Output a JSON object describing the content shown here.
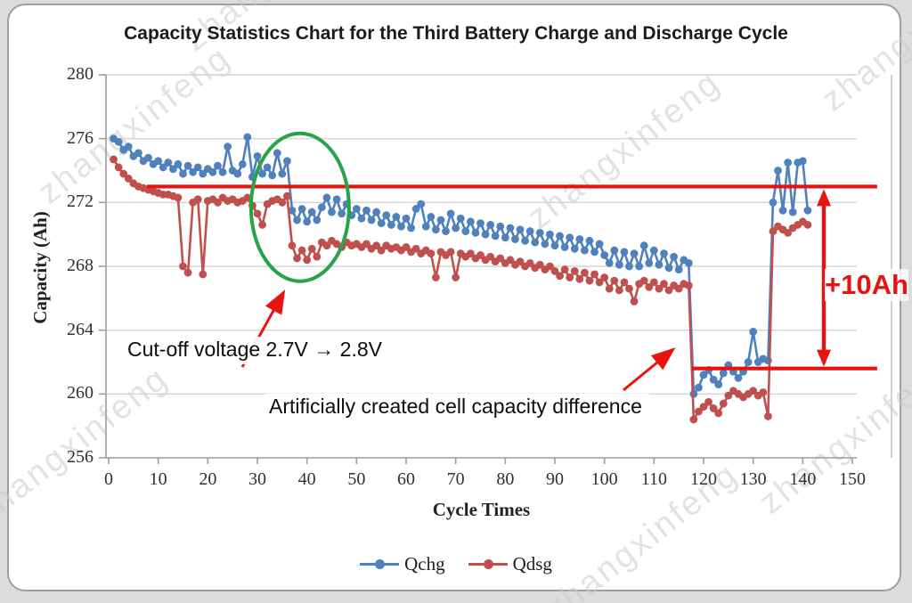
{
  "title": "Capacity Statistics Chart for the Third Battery Charge and Discharge Cycle",
  "watermark_text": "zhangxinfeng",
  "chart_data": {
    "type": "line",
    "title": "Capacity Statistics Chart for the Third Battery Charge and Discharge Cycle",
    "xlabel": "Cycle Times",
    "ylabel": "Capacity (Ah)",
    "xlim": [
      0,
      150
    ],
    "ylim": [
      256,
      280
    ],
    "x_ticks": [
      0,
      10,
      20,
      30,
      40,
      50,
      60,
      70,
      80,
      90,
      100,
      110,
      120,
      130,
      140,
      150
    ],
    "y_ticks": [
      280,
      276,
      272,
      268,
      264,
      260,
      256
    ],
    "grid": true,
    "legend_position": "bottom",
    "x_start_cycle": 1,
    "series": [
      {
        "name": "Qchg",
        "color": "#4F81BD",
        "values": [
          276.0,
          275.8,
          275.3,
          275.5,
          274.9,
          275.1,
          274.6,
          274.8,
          274.4,
          274.6,
          274.2,
          274.5,
          274.1,
          274.4,
          273.8,
          274.3,
          273.9,
          274.2,
          273.8,
          274.1,
          273.9,
          274.3,
          273.9,
          275.5,
          274.0,
          273.8,
          274.4,
          276.1,
          273.6,
          274.9,
          273.8,
          274.2,
          273.7,
          275.1,
          273.8,
          274.6,
          271.5,
          270.9,
          271.6,
          270.8,
          271.4,
          270.9,
          271.7,
          272.3,
          271.4,
          272.2,
          271.3,
          271.9,
          271.2,
          271.6,
          271.0,
          271.5,
          270.9,
          271.4,
          270.7,
          271.2,
          270.6,
          271.1,
          270.5,
          271.0,
          270.4,
          271.6,
          271.9,
          270.5,
          271.1,
          270.3,
          270.9,
          270.2,
          271.3,
          270.4,
          271.0,
          270.2,
          270.8,
          270.1,
          270.7,
          270.0,
          270.6,
          269.9,
          270.5,
          269.8,
          270.4,
          269.7,
          270.3,
          269.6,
          270.2,
          269.5,
          270.1,
          269.4,
          270.0,
          269.3,
          269.9,
          269.2,
          269.8,
          269.1,
          269.7,
          269.0,
          269.6,
          268.9,
          269.4,
          268.7,
          268.2,
          269.0,
          268.1,
          268.9,
          268.0,
          268.8,
          268.0,
          269.3,
          268.2,
          269.0,
          268.1,
          268.8,
          267.9,
          268.6,
          267.8,
          268.4,
          268.2,
          260.0,
          260.4,
          261.2,
          261.5,
          260.9,
          260.6,
          261.3,
          261.8,
          261.4,
          261.0,
          261.4,
          262.0,
          263.9,
          262.0,
          262.2,
          262.1,
          272.0,
          274.0,
          271.5,
          274.5,
          271.4,
          274.5,
          274.6,
          271.5
        ]
      },
      {
        "name": "Qdsg",
        "color": "#C0504D",
        "values": [
          274.7,
          274.2,
          273.8,
          273.5,
          273.2,
          273.0,
          272.9,
          272.8,
          272.7,
          272.6,
          272.5,
          272.5,
          272.4,
          272.3,
          268.0,
          267.6,
          272.0,
          272.2,
          267.5,
          272.1,
          272.2,
          272.0,
          272.3,
          272.1,
          272.2,
          272.0,
          272.1,
          272.3,
          271.8,
          271.3,
          270.6,
          271.9,
          272.1,
          272.2,
          272.0,
          272.4,
          269.3,
          268.5,
          269.0,
          268.4,
          269.1,
          268.6,
          269.5,
          269.3,
          269.6,
          269.4,
          269.2,
          269.5,
          269.3,
          269.4,
          269.2,
          269.4,
          269.1,
          269.3,
          269.0,
          269.3,
          269.1,
          269.2,
          269.0,
          269.2,
          268.9,
          269.1,
          268.8,
          269.0,
          268.8,
          267.3,
          268.9,
          268.7,
          268.9,
          267.3,
          268.8,
          268.6,
          268.8,
          268.5,
          268.7,
          268.4,
          268.6,
          268.3,
          268.5,
          268.2,
          268.4,
          268.1,
          268.3,
          268.0,
          268.2,
          267.9,
          268.1,
          267.8,
          268.0,
          267.7,
          267.4,
          267.8,
          267.3,
          267.7,
          267.2,
          267.6,
          267.1,
          267.5,
          267.0,
          267.3,
          266.6,
          267.1,
          266.5,
          267.0,
          266.6,
          265.8,
          266.9,
          267.1,
          266.7,
          267.0,
          266.6,
          266.9,
          266.5,
          266.8,
          266.6,
          266.9,
          266.8,
          258.4,
          258.9,
          259.2,
          259.5,
          259.1,
          258.8,
          259.4,
          259.9,
          260.2,
          260.0,
          259.8,
          260.0,
          260.2,
          259.9,
          260.1,
          258.6,
          270.2,
          270.5,
          270.3,
          270.1,
          270.4,
          270.6,
          270.8,
          270.6
        ]
      }
    ],
    "annotations": {
      "ref_line_color": "#e8120e",
      "ref_lines": [
        {
          "level": 273.0,
          "from_cycle": 7.7,
          "to_cycle": 155
        },
        {
          "level": 261.6,
          "from_cycle": 117.6,
          "to_cycle": 155
        }
      ],
      "diff_label": "+10Ah",
      "cutoff_text": "Cut-off voltage 2.7V → 2.8V",
      "artificial_text": "Artificially created cell capacity difference",
      "ellipse": {
        "center_cycle": 38.6,
        "center_capacity": 271.7,
        "color": "#27a348"
      }
    }
  }
}
